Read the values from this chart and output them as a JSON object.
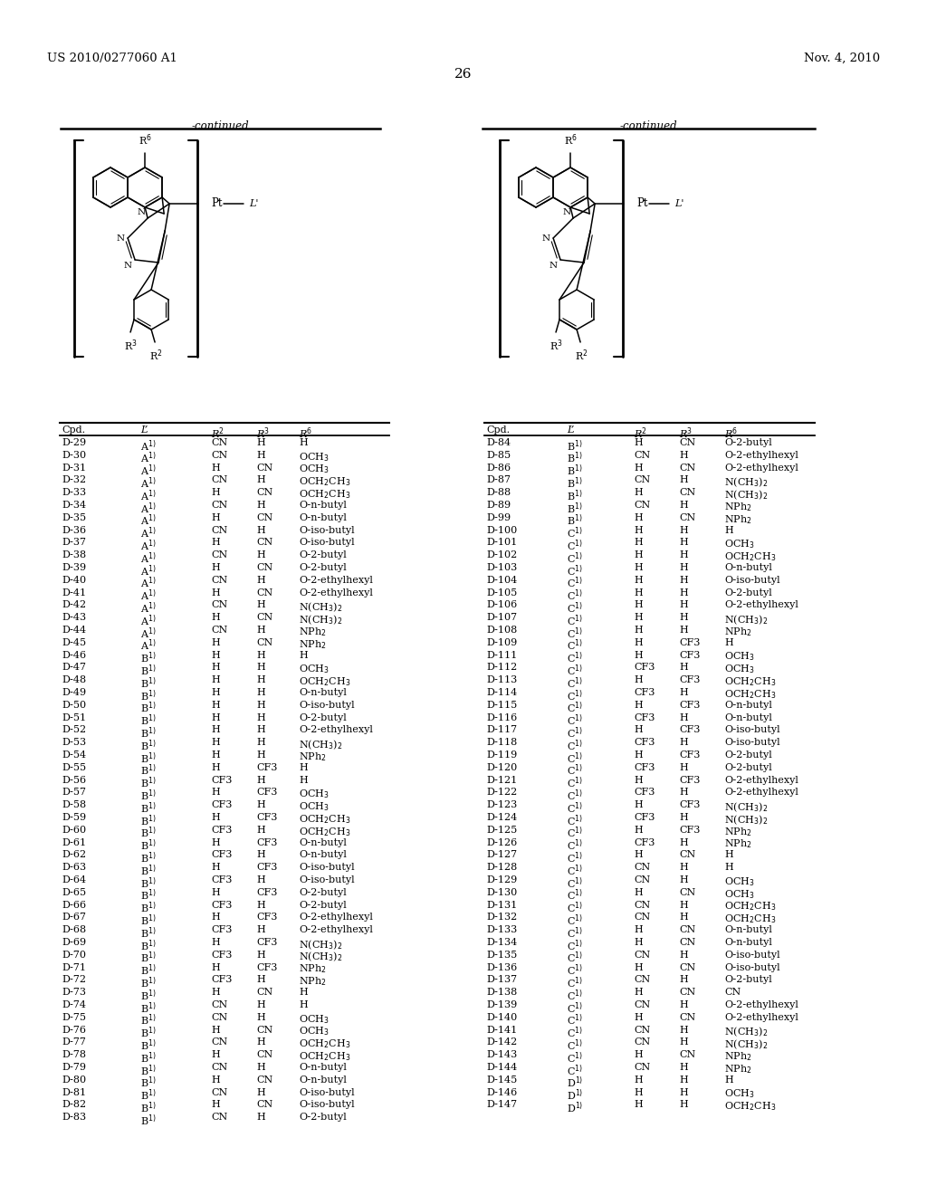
{
  "header_left": "US 2010/0277060 A1",
  "header_right": "Nov. 4, 2010",
  "page_number": "26",
  "continued_label": "-continued",
  "bg_color": "#ffffff",
  "text_color": "#000000",
  "left_rows": [
    [
      "D-29",
      "A",
      "CN",
      "H",
      "H"
    ],
    [
      "D-30",
      "A",
      "CN",
      "H",
      "OCH3"
    ],
    [
      "D-31",
      "A",
      "H",
      "CN",
      "OCH3"
    ],
    [
      "D-32",
      "A",
      "CN",
      "H",
      "OCH2CH3"
    ],
    [
      "D-33",
      "A",
      "H",
      "CN",
      "OCH2CH3"
    ],
    [
      "D-34",
      "A",
      "CN",
      "H",
      "O-n-butyl"
    ],
    [
      "D-35",
      "A",
      "H",
      "CN",
      "O-n-butyl"
    ],
    [
      "D-36",
      "A",
      "CN",
      "H",
      "O-iso-butyl"
    ],
    [
      "D-37",
      "A",
      "H",
      "CN",
      "O-iso-butyl"
    ],
    [
      "D-38",
      "A",
      "CN",
      "H",
      "O-2-butyl"
    ],
    [
      "D-39",
      "A",
      "H",
      "CN",
      "O-2-butyl"
    ],
    [
      "D-40",
      "A",
      "CN",
      "H",
      "O-2-ethylhexyl"
    ],
    [
      "D-41",
      "A",
      "H",
      "CN",
      "O-2-ethylhexyl"
    ],
    [
      "D-42",
      "A",
      "CN",
      "H",
      "N(CH3)2"
    ],
    [
      "D-43",
      "A",
      "H",
      "CN",
      "N(CH3)2"
    ],
    [
      "D-44",
      "A",
      "CN",
      "H",
      "NPh2"
    ],
    [
      "D-45",
      "A",
      "H",
      "CN",
      "NPh2"
    ],
    [
      "D-46",
      "B",
      "H",
      "H",
      "H"
    ],
    [
      "D-47",
      "B",
      "H",
      "H",
      "OCH3"
    ],
    [
      "D-48",
      "B",
      "H",
      "H",
      "OCH2CH3"
    ],
    [
      "D-49",
      "B",
      "H",
      "H",
      "O-n-butyl"
    ],
    [
      "D-50",
      "B",
      "H",
      "H",
      "O-iso-butyl"
    ],
    [
      "D-51",
      "B",
      "H",
      "H",
      "O-2-butyl"
    ],
    [
      "D-52",
      "B",
      "H",
      "H",
      "O-2-ethylhexyl"
    ],
    [
      "D-53",
      "B",
      "H",
      "H",
      "N(CH3)2"
    ],
    [
      "D-54",
      "B",
      "H",
      "H",
      "NPh2"
    ],
    [
      "D-55",
      "B",
      "H",
      "CF3",
      "H"
    ],
    [
      "D-56",
      "B",
      "CF3",
      "H",
      "H"
    ],
    [
      "D-57",
      "B",
      "H",
      "CF3",
      "OCH3"
    ],
    [
      "D-58",
      "B",
      "CF3",
      "H",
      "OCH3"
    ],
    [
      "D-59",
      "B",
      "H",
      "CF3",
      "OCH2CH3"
    ],
    [
      "D-60",
      "B",
      "CF3",
      "H",
      "OCH2CH3"
    ],
    [
      "D-61",
      "B",
      "H",
      "CF3",
      "O-n-butyl"
    ],
    [
      "D-62",
      "B",
      "CF3",
      "H",
      "O-n-butyl"
    ],
    [
      "D-63",
      "B",
      "H",
      "CF3",
      "O-iso-butyl"
    ],
    [
      "D-64",
      "B",
      "CF3",
      "H",
      "O-iso-butyl"
    ],
    [
      "D-65",
      "B",
      "H",
      "CF3",
      "O-2-butyl"
    ],
    [
      "D-66",
      "B",
      "CF3",
      "H",
      "O-2-butyl"
    ],
    [
      "D-67",
      "B",
      "H",
      "CF3",
      "O-2-ethylhexyl"
    ],
    [
      "D-68",
      "B",
      "CF3",
      "H",
      "O-2-ethylhexyl"
    ],
    [
      "D-69",
      "B",
      "H",
      "CF3",
      "N(CH3)2"
    ],
    [
      "D-70",
      "B",
      "CF3",
      "H",
      "N(CH3)2"
    ],
    [
      "D-71",
      "B",
      "H",
      "CF3",
      "NPh2"
    ],
    [
      "D-72",
      "B",
      "CF3",
      "H",
      "NPh2"
    ],
    [
      "D-73",
      "B",
      "H",
      "CN",
      "H"
    ],
    [
      "D-74",
      "B",
      "CN",
      "H",
      "H"
    ],
    [
      "D-75",
      "B",
      "CN",
      "H",
      "OCH3"
    ],
    [
      "D-76",
      "B",
      "H",
      "CN",
      "OCH3"
    ],
    [
      "D-77",
      "B",
      "CN",
      "H",
      "OCH2CH3"
    ],
    [
      "D-78",
      "B",
      "H",
      "CN",
      "OCH2CH3"
    ],
    [
      "D-79",
      "B",
      "CN",
      "H",
      "O-n-butyl"
    ],
    [
      "D-80",
      "B",
      "H",
      "CN",
      "O-n-butyl"
    ],
    [
      "D-81",
      "B",
      "CN",
      "H",
      "O-iso-butyl"
    ],
    [
      "D-82",
      "B",
      "H",
      "CN",
      "O-iso-butyl"
    ],
    [
      "D-83",
      "B",
      "CN",
      "H",
      "O-2-butyl"
    ]
  ],
  "right_rows": [
    [
      "D-84",
      "B",
      "H",
      "CN",
      "O-2-butyl"
    ],
    [
      "D-85",
      "B",
      "CN",
      "H",
      "O-2-ethylhexyl"
    ],
    [
      "D-86",
      "B",
      "H",
      "CN",
      "O-2-ethylhexyl"
    ],
    [
      "D-87",
      "B",
      "CN",
      "H",
      "N(CH3)2"
    ],
    [
      "D-88",
      "B",
      "H",
      "CN",
      "N(CH3)2"
    ],
    [
      "D-89",
      "B",
      "CN",
      "H",
      "NPh2"
    ],
    [
      "D-99",
      "B",
      "H",
      "CN",
      "NPh2"
    ],
    [
      "D-100",
      "C",
      "H",
      "H",
      "H"
    ],
    [
      "D-101",
      "C",
      "H",
      "H",
      "OCH3"
    ],
    [
      "D-102",
      "C",
      "H",
      "H",
      "OCH2CH3"
    ],
    [
      "D-103",
      "C",
      "H",
      "H",
      "O-n-butyl"
    ],
    [
      "D-104",
      "C",
      "H",
      "H",
      "O-iso-butyl"
    ],
    [
      "D-105",
      "C",
      "H",
      "H",
      "O-2-butyl"
    ],
    [
      "D-106",
      "C",
      "H",
      "H",
      "O-2-ethylhexyl"
    ],
    [
      "D-107",
      "C",
      "H",
      "H",
      "N(CH3)2"
    ],
    [
      "D-108",
      "C",
      "H",
      "H",
      "NPh2"
    ],
    [
      "D-109",
      "C",
      "H",
      "CF3",
      "H"
    ],
    [
      "D-111",
      "C",
      "H",
      "CF3",
      "OCH3"
    ],
    [
      "D-112",
      "C",
      "CF3",
      "H",
      "OCH3"
    ],
    [
      "D-113",
      "C",
      "H",
      "CF3",
      "OCH2CH3"
    ],
    [
      "D-114",
      "C",
      "CF3",
      "H",
      "OCH2CH3"
    ],
    [
      "D-115",
      "C",
      "H",
      "CF3",
      "O-n-butyl"
    ],
    [
      "D-116",
      "C",
      "CF3",
      "H",
      "O-n-butyl"
    ],
    [
      "D-117",
      "C",
      "H",
      "CF3",
      "O-iso-butyl"
    ],
    [
      "D-118",
      "C",
      "CF3",
      "H",
      "O-iso-butyl"
    ],
    [
      "D-119",
      "C",
      "H",
      "CF3",
      "O-2-butyl"
    ],
    [
      "D-120",
      "C",
      "CF3",
      "H",
      "O-2-butyl"
    ],
    [
      "D-121",
      "C",
      "H",
      "CF3",
      "O-2-ethylhexyl"
    ],
    [
      "D-122",
      "C",
      "CF3",
      "H",
      "O-2-ethylhexyl"
    ],
    [
      "D-123",
      "C",
      "H",
      "CF3",
      "N(CH3)2"
    ],
    [
      "D-124",
      "C",
      "CF3",
      "H",
      "N(CH3)2"
    ],
    [
      "D-125",
      "C",
      "H",
      "CF3",
      "NPh2"
    ],
    [
      "D-126",
      "C",
      "CF3",
      "H",
      "NPh2"
    ],
    [
      "D-127",
      "C",
      "H",
      "CN",
      "H"
    ],
    [
      "D-128",
      "C",
      "CN",
      "H",
      "H"
    ],
    [
      "D-129",
      "C",
      "CN",
      "H",
      "OCH3"
    ],
    [
      "D-130",
      "C",
      "H",
      "CN",
      "OCH3"
    ],
    [
      "D-131",
      "C",
      "CN",
      "H",
      "OCH2CH3"
    ],
    [
      "D-132",
      "C",
      "CN",
      "H",
      "OCH2CH3"
    ],
    [
      "D-133",
      "C",
      "H",
      "CN",
      "O-n-butyl"
    ],
    [
      "D-134",
      "C",
      "H",
      "CN",
      "O-n-butyl"
    ],
    [
      "D-135",
      "C",
      "CN",
      "H",
      "O-iso-butyl"
    ],
    [
      "D-136",
      "C",
      "H",
      "CN",
      "O-iso-butyl"
    ],
    [
      "D-137",
      "C",
      "CN",
      "H",
      "O-2-butyl"
    ],
    [
      "D-138",
      "C",
      "H",
      "CN",
      "CN"
    ],
    [
      "D-139",
      "C",
      "CN",
      "H",
      "O-2-ethylhexyl"
    ],
    [
      "D-140",
      "C",
      "H",
      "CN",
      "O-2-ethylhexyl"
    ],
    [
      "D-141",
      "C",
      "CN",
      "H",
      "N(CH3)2"
    ],
    [
      "D-142",
      "C",
      "CN",
      "H",
      "N(CH3)2"
    ],
    [
      "D-143",
      "C",
      "H",
      "CN",
      "NPh2"
    ],
    [
      "D-144",
      "C",
      "CN",
      "H",
      "NPh2"
    ],
    [
      "D-145",
      "D",
      "H",
      "H",
      "H"
    ],
    [
      "D-146",
      "D",
      "H",
      "H",
      "OCH3"
    ],
    [
      "D-147",
      "D",
      "H",
      "H",
      "OCH2CH3"
    ]
  ]
}
